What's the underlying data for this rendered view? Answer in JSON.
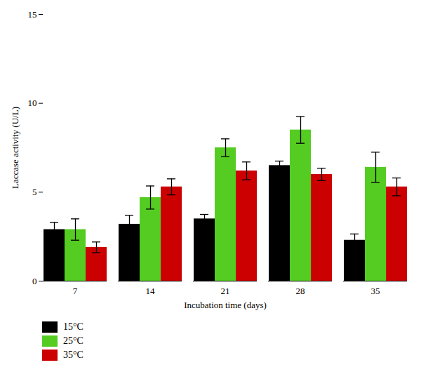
{
  "chart_data": {
    "type": "bar",
    "categories": [
      "7",
      "14",
      "21",
      "28",
      "35"
    ],
    "series": [
      {
        "name": "15°C",
        "color": "#000000",
        "values": [
          2.9,
          3.2,
          3.5,
          6.5,
          2.3
        ],
        "errors": [
          0.4,
          0.5,
          0.25,
          0.25,
          0.35
        ]
      },
      {
        "name": "25°C",
        "color": "#55cc22",
        "values": [
          2.9,
          4.7,
          7.5,
          8.5,
          6.4
        ],
        "errors": [
          0.6,
          0.65,
          0.5,
          0.75,
          0.85
        ]
      },
      {
        "name": "35°C",
        "color": "#cc0000",
        "values": [
          1.9,
          5.3,
          6.2,
          6.0,
          5.3
        ],
        "errors": [
          0.3,
          0.45,
          0.5,
          0.35,
          0.5
        ]
      }
    ],
    "xlabel": "Incubation time (days)",
    "ylabel": "Laccase activity (U/L)",
    "ylim": [
      0,
      15
    ],
    "yticks": [
      0,
      5,
      10,
      15
    ],
    "grid": false,
    "legend": "lower left"
  }
}
